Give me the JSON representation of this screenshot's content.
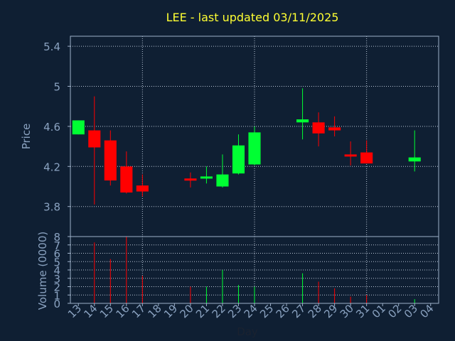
{
  "colors": {
    "background": "#0f1f33",
    "axis": "#9db0c9",
    "label": "#8aa2c0",
    "title": "#ffff33",
    "grid": "#b8c4d4",
    "up": "#00ff33",
    "down": "#ff0000"
  },
  "chart_data": [
    {
      "type": "candlestick",
      "title": "LEE - last updated 03/11/2025",
      "ylabel": "Price",
      "ylim": [
        3.5,
        5.5
      ],
      "yticks": [
        3.8,
        4.2,
        4.6,
        5,
        5.4
      ],
      "ytick_labels": [
        "3.8",
        "4.2",
        "4.6",
        "5",
        "5.4"
      ],
      "grid": true,
      "days": [
        "13",
        "14",
        "15",
        "16",
        "17",
        "18",
        "19",
        "20",
        "21",
        "22",
        "23",
        "24",
        "25",
        "26",
        "27",
        "28",
        "29",
        "30",
        "31",
        "01",
        "02",
        "03",
        "04"
      ],
      "candles": [
        {
          "day": "13",
          "open": 4.52,
          "close": 4.66,
          "high": 4.66,
          "low": 4.52
        },
        {
          "day": "14",
          "open": 4.56,
          "close": 4.39,
          "high": 4.9,
          "low": 3.82
        },
        {
          "day": "15",
          "open": 4.46,
          "close": 4.06,
          "high": 4.56,
          "low": 4.01
        },
        {
          "day": "16",
          "open": 4.2,
          "close": 3.94,
          "high": 4.35,
          "low": 3.93
        },
        {
          "day": "17",
          "open": 4.01,
          "close": 3.95,
          "high": 4.12,
          "low": 3.9
        },
        {
          "day": "20",
          "open": 4.08,
          "close": 4.07,
          "high": 4.14,
          "low": 3.99
        },
        {
          "day": "21",
          "open": 4.08,
          "close": 4.1,
          "high": 4.2,
          "low": 4.03
        },
        {
          "day": "22",
          "open": 4.0,
          "close": 4.12,
          "high": 4.32,
          "low": 3.99
        },
        {
          "day": "23",
          "open": 4.13,
          "close": 4.41,
          "high": 4.52,
          "low": 4.12
        },
        {
          "day": "24",
          "open": 4.22,
          "close": 4.54,
          "high": 4.6,
          "low": 4.21
        },
        {
          "day": "27",
          "open": 4.64,
          "close": 4.67,
          "high": 4.98,
          "low": 4.47
        },
        {
          "day": "28",
          "open": 4.64,
          "close": 4.53,
          "high": 4.74,
          "low": 4.4
        },
        {
          "day": "29",
          "open": 4.59,
          "close": 4.56,
          "high": 4.7,
          "low": 4.5
        },
        {
          "day": "30",
          "open": 4.32,
          "close": 4.3,
          "high": 4.45,
          "low": 4.21
        },
        {
          "day": "31",
          "open": 4.34,
          "close": 4.23,
          "high": 4.46,
          "low": 4.23
        },
        {
          "day": "03",
          "open": 4.25,
          "close": 4.29,
          "high": 4.56,
          "low": 4.15
        }
      ]
    },
    {
      "type": "bar",
      "ylabel": "Volume (0000)",
      "xlabel": "Day",
      "ylim": [
        0,
        8
      ],
      "yticks": [
        0,
        1,
        2,
        3,
        4,
        5,
        6,
        7,
        8
      ],
      "ytick_labels": [
        "0",
        "1",
        "2",
        "3",
        "4",
        "5",
        "6",
        "7",
        "8"
      ],
      "grid": true,
      "categories": [
        "13",
        "14",
        "15",
        "16",
        "17",
        "18",
        "19",
        "20",
        "21",
        "22",
        "23",
        "24",
        "25",
        "26",
        "27",
        "28",
        "29",
        "30",
        "31",
        "01",
        "02",
        "03",
        "04"
      ],
      "bars": [
        {
          "day": "13",
          "value": 0.0,
          "direction": "up"
        },
        {
          "day": "14",
          "value": 7.3,
          "direction": "down"
        },
        {
          "day": "15",
          "value": 5.3,
          "direction": "down"
        },
        {
          "day": "16",
          "value": 8.0,
          "direction": "down"
        },
        {
          "day": "17",
          "value": 3.3,
          "direction": "down"
        },
        {
          "day": "20",
          "value": 2.0,
          "direction": "down"
        },
        {
          "day": "21",
          "value": 2.0,
          "direction": "up"
        },
        {
          "day": "22",
          "value": 4.0,
          "direction": "up"
        },
        {
          "day": "23",
          "value": 2.2,
          "direction": "up"
        },
        {
          "day": "24",
          "value": 2.0,
          "direction": "up"
        },
        {
          "day": "27",
          "value": 3.6,
          "direction": "up"
        },
        {
          "day": "28",
          "value": 2.6,
          "direction": "down"
        },
        {
          "day": "29",
          "value": 1.8,
          "direction": "down"
        },
        {
          "day": "30",
          "value": 0.8,
          "direction": "down"
        },
        {
          "day": "31",
          "value": 1.0,
          "direction": "down"
        },
        {
          "day": "03",
          "value": 0.5,
          "direction": "up"
        }
      ]
    }
  ]
}
